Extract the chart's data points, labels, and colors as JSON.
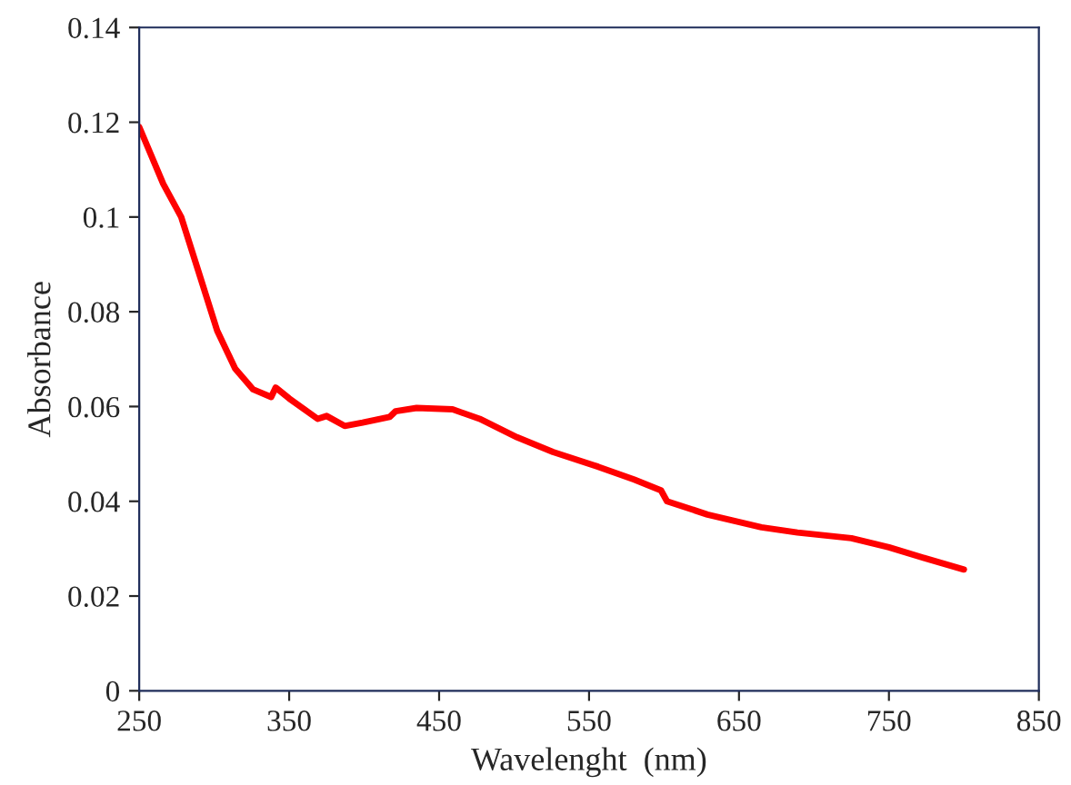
{
  "chart_data": {
    "type": "line",
    "xlabel": "Wavelenght  (nm)",
    "ylabel": "Absorbance",
    "xlim": [
      250,
      850
    ],
    "xticks": [
      250,
      350,
      450,
      550,
      650,
      750,
      850
    ],
    "ylim": [
      0,
      0.14
    ],
    "yticks": [
      0,
      0.02,
      0.04,
      0.06,
      0.08,
      0.1,
      0.12,
      0.14
    ],
    "grid": false,
    "marker": "none",
    "line_style": "solid",
    "series": [
      {
        "color": "#ff0000",
        "x": [
          250,
          266,
          278,
          290,
          302,
          314,
          326,
          338,
          341,
          350,
          369,
          375,
          387,
          399,
          417,
          421,
          435,
          459,
          477,
          502,
          526,
          556,
          580,
          598,
          602,
          629,
          665,
          689,
          725,
          750,
          774,
          800
        ],
        "values": [
          0.119,
          0.107,
          0.1,
          0.088,
          0.076,
          0.068,
          0.0636,
          0.062,
          0.064,
          0.0617,
          0.0574,
          0.058,
          0.0559,
          0.0566,
          0.0578,
          0.059,
          0.0597,
          0.0594,
          0.0574,
          0.0535,
          0.0504,
          0.0473,
          0.0446,
          0.0423,
          0.04,
          0.0372,
          0.0345,
          0.0334,
          0.0322,
          0.0303,
          0.028,
          0.0256
        ]
      }
    ]
  }
}
